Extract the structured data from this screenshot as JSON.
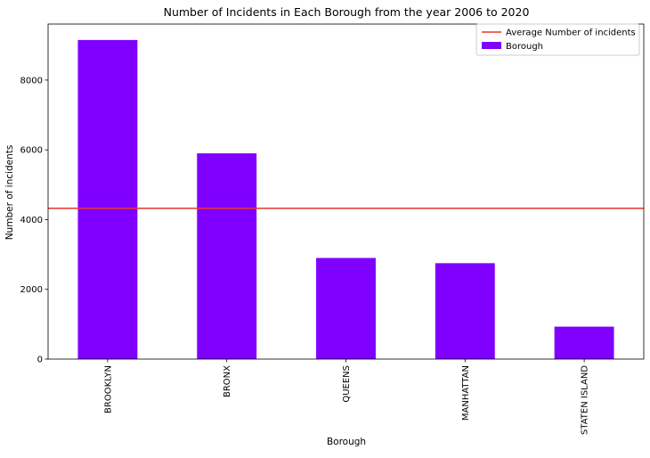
{
  "chart_data": {
    "type": "bar",
    "title": "Number of Incidents in Each Borough from the year 2006 to 2020",
    "xlabel": "Borough",
    "ylabel": "Number of incidents",
    "categories": [
      "BROOKLYN",
      "BRONX",
      "QUEENS",
      "MANHATTAN",
      "STATEN ISLAND"
    ],
    "series": [
      {
        "name": "Borough",
        "values": [
          9150,
          5900,
          2900,
          2750,
          930
        ],
        "color": "#7f00ff"
      }
    ],
    "reference_line": {
      "name": "Average Number of incidents",
      "value": 4326,
      "color": "#e8362f"
    },
    "ylim": [
      0,
      9607
    ],
    "yticks": [
      0,
      2000,
      4000,
      6000,
      8000
    ],
    "yticks_labels": [
      "0",
      "2000",
      "4000",
      "6000",
      "8000"
    ],
    "grid": false,
    "legend_position": "top-right"
  }
}
